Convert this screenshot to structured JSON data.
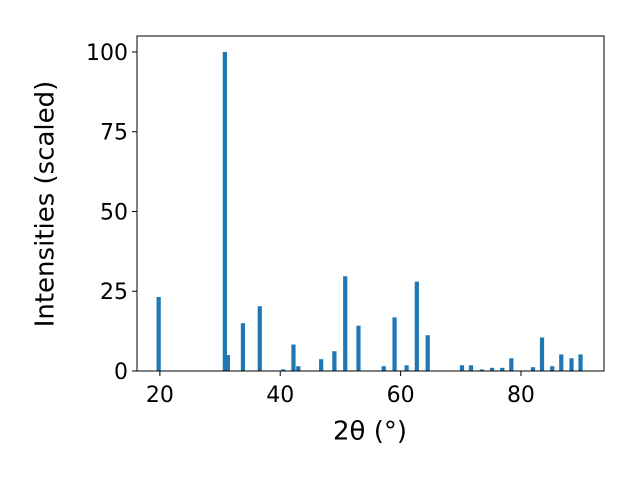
{
  "chart_data": {
    "type": "bar",
    "xlabel": "2θ (°)",
    "ylabel": "Intensities (scaled)",
    "x": [
      19.8,
      30.8,
      31.3,
      33.8,
      36.6,
      40.5,
      42.2,
      43.0,
      46.8,
      49.0,
      50.8,
      53.0,
      57.2,
      59.0,
      61.0,
      62.7,
      64.5,
      70.2,
      71.7,
      73.5,
      75.2,
      76.9,
      78.4,
      82.0,
      83.5,
      85.2,
      86.7,
      88.4,
      89.9
    ],
    "values": [
      23.2,
      100,
      5,
      15,
      20.3,
      0.5,
      8.3,
      1.5,
      3.7,
      6.2,
      29.7,
      14.2,
      1.5,
      16.8,
      1.8,
      28,
      11.2,
      1.8,
      1.8,
      0.5,
      1,
      1,
      4,
      1.2,
      10.5,
      1.5,
      5.2,
      4,
      5.2
    ],
    "color": "#1f77b4",
    "xlim": [
      16.2,
      93.8
    ],
    "ylim": [
      0,
      105
    ],
    "xticks": [
      20,
      40,
      60,
      80
    ],
    "yticks": [
      0,
      25,
      50,
      75,
      100
    ],
    "grid": false
  }
}
